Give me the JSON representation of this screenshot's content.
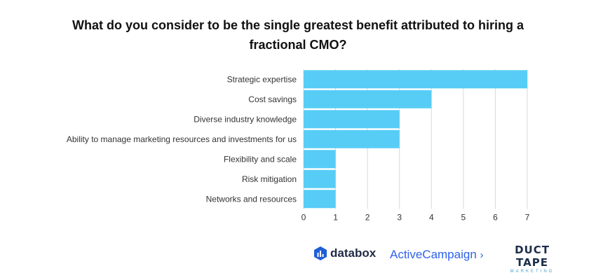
{
  "chart_data": {
    "type": "bar",
    "orientation": "horizontal",
    "title": "What do you consider to be the single greatest benefit attributed to hiring a fractional CMO?",
    "categories": [
      "Strategic expertise",
      "Cost savings",
      "Diverse industry knowledge",
      "Ability to manage marketing resources and investments for us",
      "Flexibility and scale",
      "Risk mitigation",
      "Networks and resources"
    ],
    "values": [
      7,
      4,
      3,
      3,
      1,
      1,
      1
    ],
    "xlim": [
      0,
      7
    ],
    "xticks": [
      "0",
      "1",
      "2",
      "3",
      "4",
      "5",
      "6",
      "7"
    ],
    "xlabel": "",
    "ylabel": "",
    "grid": true,
    "bar_color": "#57cdf6",
    "grid_color": "#d9d9d9"
  },
  "logos": {
    "databox": "databox",
    "activecampaign": "ActiveCampaign",
    "ducttape_main": "DUCT TAPE",
    "ducttape_sub": "MARKETING"
  }
}
